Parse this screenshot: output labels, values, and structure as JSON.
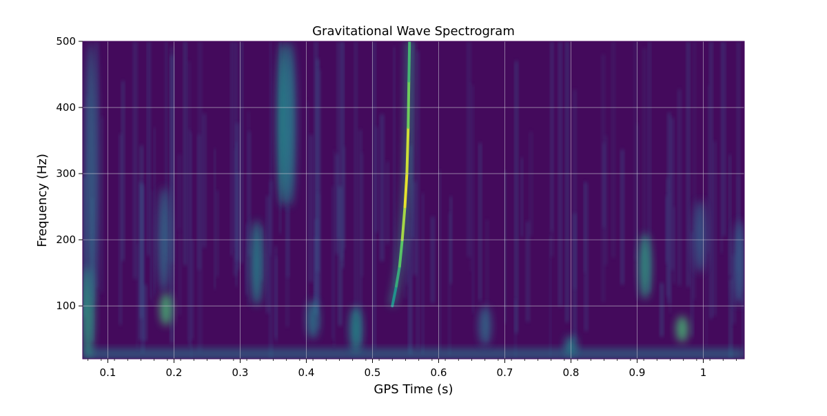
{
  "chart_data": {
    "type": "heatmap",
    "title": "Gravitational Wave Spectrogram",
    "xlabel": "GPS Time (s)",
    "ylabel": "Frequency (Hz)",
    "xlim": [
      0.062,
      1.062
    ],
    "ylim": [
      20,
      500
    ],
    "x_ticks": [
      0.1,
      0.2,
      0.3,
      0.4,
      0.5,
      0.6,
      0.7,
      0.8,
      0.9,
      1
    ],
    "x_tick_labels": [
      "0.1",
      "0.2",
      "0.3",
      "0.4",
      "0.5",
      "0.6",
      "0.7",
      "0.8",
      "0.9",
      "1"
    ],
    "y_ticks": [
      100,
      200,
      300,
      400,
      500
    ],
    "y_tick_labels": [
      "100",
      "200",
      "300",
      "400",
      "500"
    ],
    "grid": true,
    "colormap": "viridis",
    "background_color": "#440a5c",
    "grid_color": "#c8c8d2",
    "chirp_track": {
      "times": [
        0.53,
        0.536,
        0.541,
        0.545,
        0.549,
        0.552,
        0.554,
        0.555,
        0.556
      ],
      "frequencies": [
        100,
        130,
        160,
        200,
        250,
        300,
        370,
        440,
        500
      ],
      "intensities": [
        0.45,
        0.55,
        0.65,
        0.8,
        0.92,
        1.0,
        0.85,
        0.7,
        0.6
      ]
    },
    "features": [
      {
        "t": 0.07,
        "f_low": 20,
        "f_high": 160,
        "intensity": 0.55
      },
      {
        "t": 0.075,
        "f_low": 100,
        "f_high": 500,
        "intensity": 0.35
      },
      {
        "t": 0.188,
        "f_low": 70,
        "f_high": 120,
        "intensity": 0.65
      },
      {
        "t": 0.185,
        "f_low": 120,
        "f_high": 280,
        "intensity": 0.35
      },
      {
        "t": 0.325,
        "f_low": 100,
        "f_high": 230,
        "intensity": 0.45
      },
      {
        "t": 0.365,
        "f_low": 250,
        "f_high": 500,
        "intensity": 0.5
      },
      {
        "t": 0.375,
        "f_low": 250,
        "f_high": 500,
        "intensity": 0.4
      },
      {
        "t": 0.475,
        "f_low": 30,
        "f_high": 100,
        "intensity": 0.5
      },
      {
        "t": 0.912,
        "f_low": 110,
        "f_high": 210,
        "intensity": 0.55
      },
      {
        "t": 0.968,
        "f_low": 45,
        "f_high": 85,
        "intensity": 0.65
      },
      {
        "t": 0.995,
        "f_low": 150,
        "f_high": 260,
        "intensity": 0.3
      },
      {
        "t": 1.055,
        "f_low": 100,
        "f_high": 230,
        "intensity": 0.3
      },
      {
        "t": 0.8,
        "f_low": 25,
        "f_high": 55,
        "intensity": 0.45
      },
      {
        "t": 0.67,
        "f_low": 40,
        "f_high": 100,
        "intensity": 0.35
      },
      {
        "t": 0.41,
        "f_low": 50,
        "f_high": 110,
        "intensity": 0.4
      }
    ],
    "low_frequency_band": {
      "f_low": 20,
      "f_high": 35,
      "intensity": 0.4
    }
  }
}
